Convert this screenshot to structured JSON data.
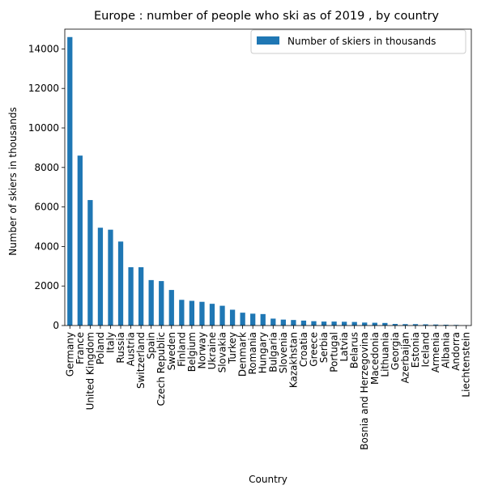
{
  "colors": {
    "bar": "#1f77b4",
    "axis": "#000000",
    "legend_border": "#cccccc",
    "background": "#ffffff"
  },
  "chart_data": {
    "type": "bar",
    "title": "Europe : number of people who ski as of 2019 , by country",
    "xlabel": "Country",
    "ylabel": "Number of skiers in thousands",
    "legend_position": "top-right",
    "grid": false,
    "ylim": [
      0,
      15000
    ],
    "yticks": [
      0,
      2000,
      4000,
      6000,
      8000,
      10000,
      12000,
      14000
    ],
    "categories": [
      "Germany",
      "France",
      "United Kingdom",
      "Poland",
      "Italy",
      "Russia",
      "Austria",
      "Switzerland",
      "Spain",
      "Czech Republic",
      "Sweden",
      "Finland",
      "Belgium",
      "Norway",
      "Ukraine",
      "Slovakia",
      "Turkey",
      "Denmark",
      "Romania",
      "Hungary",
      "Bulgaria",
      "Slovenia",
      "Kazakhstan",
      "Croatia",
      "Greece",
      "Serbia",
      "Portugal",
      "Latvia",
      "Belarus",
      "Bosnia and Herzegovina",
      "Macedonia",
      "Lithuania",
      "Georgia",
      "Azerbaijan",
      "Estonia",
      "Iceland",
      "Armenia",
      "Albania",
      "Andorra",
      "Liechtenstein"
    ],
    "series": [
      {
        "name": "Number of skiers in thousands",
        "values": [
          14600,
          8600,
          6350,
          4950,
          4850,
          4250,
          2950,
          2950,
          2300,
          2250,
          1800,
          1300,
          1250,
          1200,
          1100,
          1000,
          800,
          650,
          600,
          580,
          350,
          300,
          280,
          250,
          220,
          200,
          200,
          190,
          180,
          150,
          140,
          130,
          80,
          70,
          70,
          60,
          50,
          40,
          30,
          10
        ]
      }
    ]
  }
}
